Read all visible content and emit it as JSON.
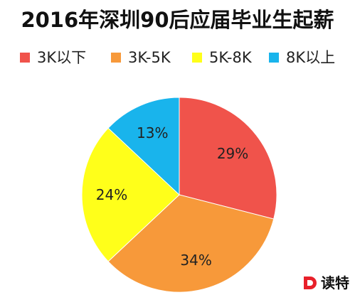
{
  "chart_data": {
    "type": "pie",
    "title": "2016年深圳90后应届毕业生起薪",
    "categories": [
      "3K以下",
      "3K-5K",
      "5K-8K",
      "8K以上"
    ],
    "values": [
      29,
      34,
      24,
      13
    ],
    "value_labels": [
      "29%",
      "34%",
      "24%",
      "13%"
    ],
    "colors": [
      "#F0534B",
      "#F7993A",
      "#FFFF1A",
      "#19B4EC"
    ],
    "legend_position": "top",
    "start": "12 o'clock",
    "direction": "clockwise"
  },
  "watermark": {
    "logo_letter": "D",
    "text": "读特",
    "logo_color": "#E8202A"
  }
}
